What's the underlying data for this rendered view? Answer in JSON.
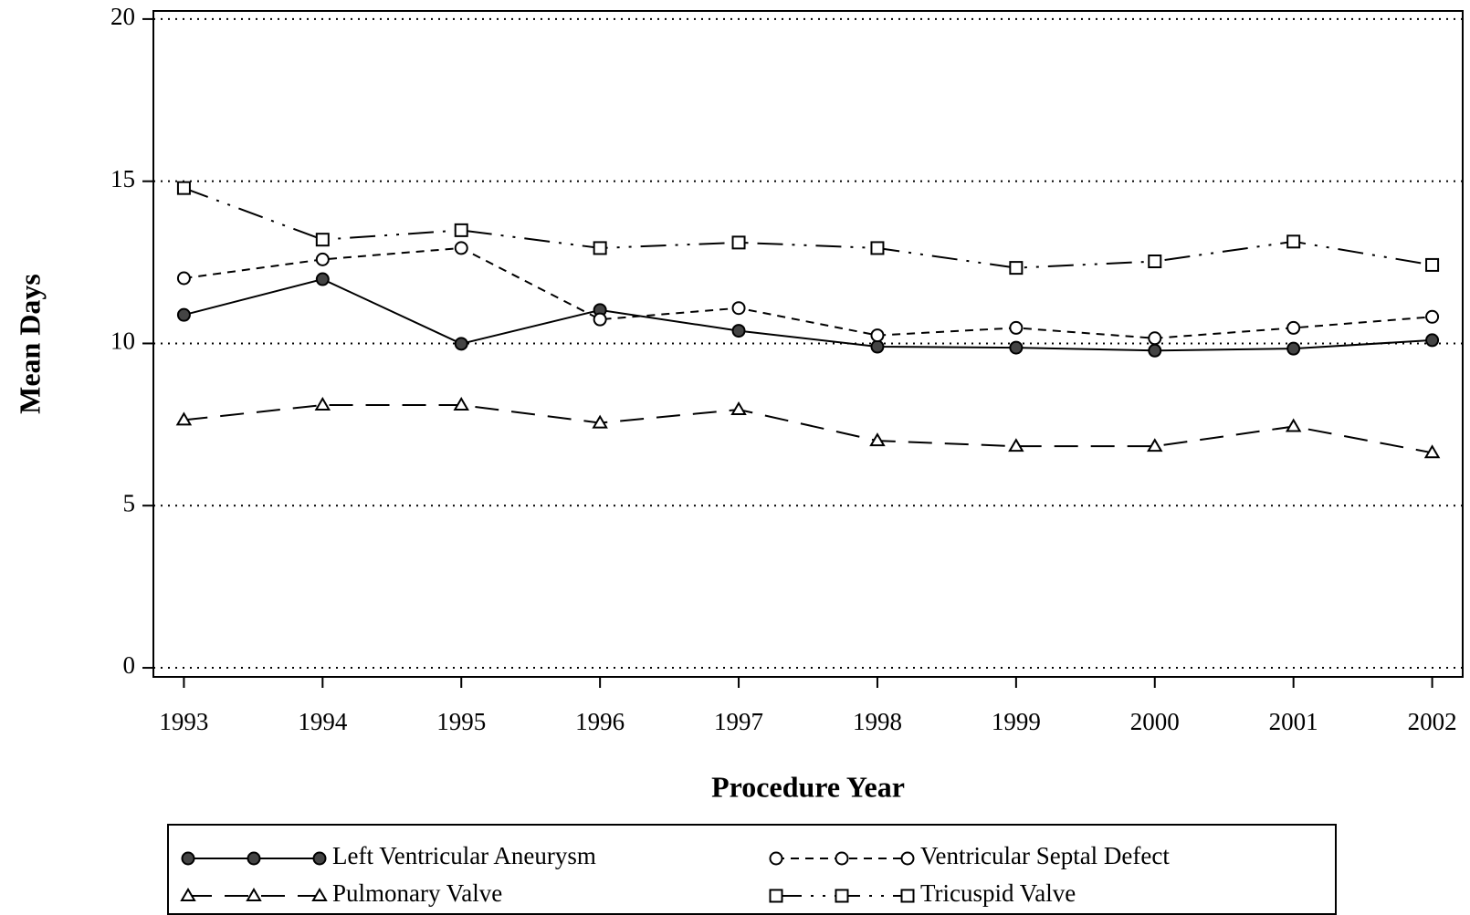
{
  "chart_data": {
    "type": "line",
    "x_label": "Procedure Year",
    "y_label": "Mean Days",
    "x": [
      1993,
      1994,
      1995,
      1996,
      1997,
      1998,
      1999,
      2000,
      2001,
      2002
    ],
    "xlim": [
      1992.78,
      2002.22
    ],
    "xticks": [
      1993,
      1994,
      1995,
      1996,
      1997,
      1998,
      1999,
      2000,
      2001,
      2002
    ],
    "ylim": [
      -0.28,
      20.25
    ],
    "yticks": [
      0,
      5,
      10,
      15,
      20
    ],
    "grid": true,
    "legend": "bottom",
    "series": [
      {
        "name": "Left Ventricular Aneurysm",
        "color": "#000000",
        "marker": "circle-filled",
        "dash": "solid",
        "values": [
          10.88,
          11.98,
          9.99,
          11.03,
          10.39,
          9.9,
          9.87,
          9.78,
          9.84,
          10.1
        ]
      },
      {
        "name": "Ventricular Septal Defect",
        "color": "#000000",
        "marker": "circle",
        "dash": "short",
        "values": [
          12.01,
          12.59,
          12.94,
          10.74,
          11.09,
          10.25,
          10.48,
          10.16,
          10.48,
          10.82
        ]
      },
      {
        "name": "Pulmonary Valve",
        "color": "#000000",
        "marker": "triangle",
        "dash": "long",
        "values": [
          7.64,
          8.1,
          8.1,
          7.55,
          7.96,
          7.0,
          6.83,
          6.83,
          7.44,
          6.63
        ]
      },
      {
        "name": "Tricuspid Valve",
        "color": "#000000",
        "marker": "square",
        "dash": "dash-dot-dot",
        "values": [
          14.79,
          13.2,
          13.49,
          12.94,
          13.11,
          12.94,
          12.33,
          12.53,
          13.14,
          12.42
        ]
      }
    ]
  }
}
